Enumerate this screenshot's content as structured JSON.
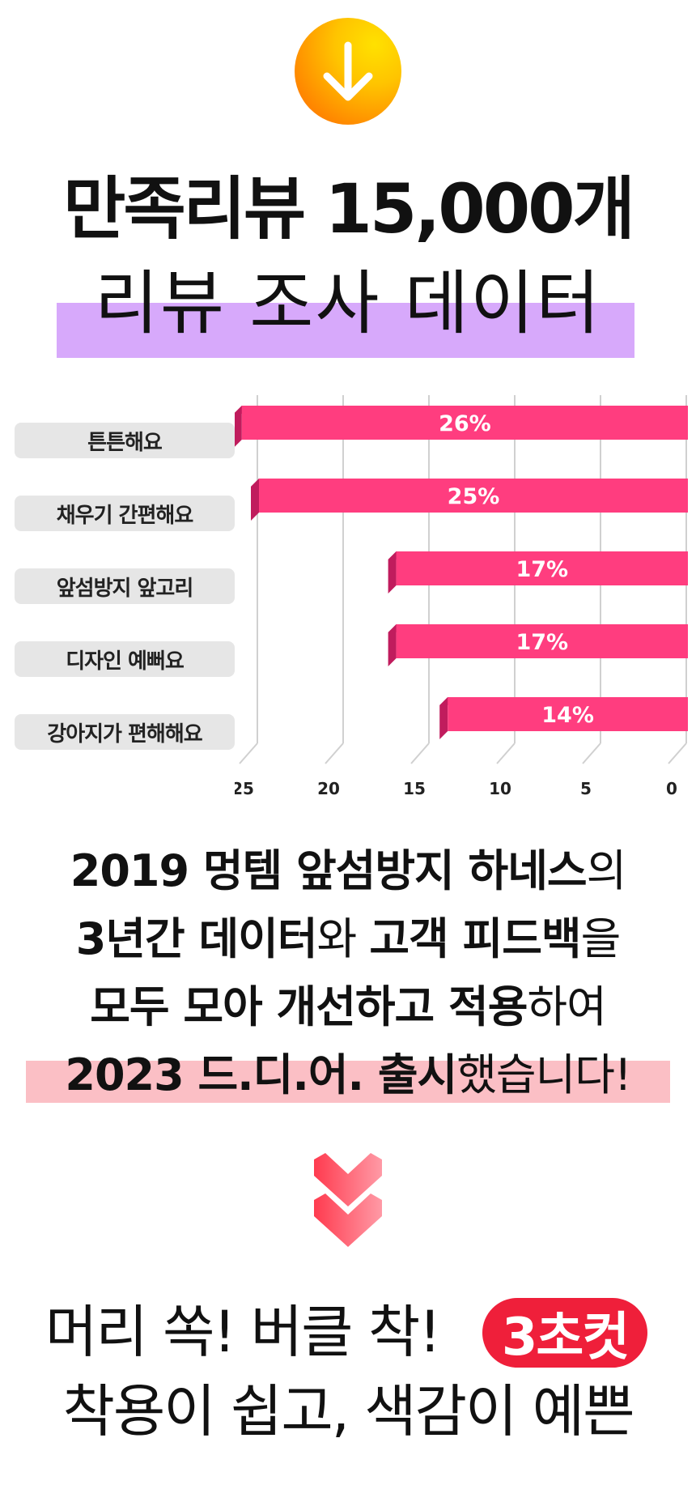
{
  "top_icon": "arrow-down-icon",
  "headline": {
    "line1": "만족리뷰 15,000개",
    "line2": "리뷰 조사 데이터",
    "highlight_color": "#d7a9fb"
  },
  "chart_data": {
    "type": "bar",
    "orientation": "horizontal",
    "x_direction": "reversed",
    "categories": [
      "튼튼해요",
      "채우기 간편해요",
      "앞섬방지 앞고리",
      "디자인 예뻐요",
      "강아지가 편해해요"
    ],
    "values": [
      26,
      25,
      17,
      17,
      14
    ],
    "value_labels": [
      "26%",
      "25%",
      "17%",
      "17%",
      "14%"
    ],
    "xticks": [
      "25",
      "20",
      "15",
      "10",
      "5",
      "0"
    ],
    "xlim": [
      0,
      25
    ],
    "grid": true,
    "bar_color": "#ff3d7f"
  },
  "paragraph": {
    "l1_a": "2019 멍템 앞섬방지 하네스",
    "l1_b": "의",
    "l2_a": "3년간 데이터",
    "l2_b": "와 ",
    "l2_c": "고객 피드백",
    "l2_d": "을",
    "l3_a": "모두 모아 개선하고 적용",
    "l3_b": "하여",
    "l4_a": "2023 드.디.어. 출시",
    "l4_b": "했습니다!",
    "highlight_color": "#fbbfc5"
  },
  "chevron_icon": "double-chevron-down-icon",
  "bottom": {
    "line1": "머리 쏙! 버클 착!",
    "pill": "3초컷",
    "line2": "착용이 쉽고, 색감이 예쁜",
    "pill_color": "#ef1f3a"
  }
}
